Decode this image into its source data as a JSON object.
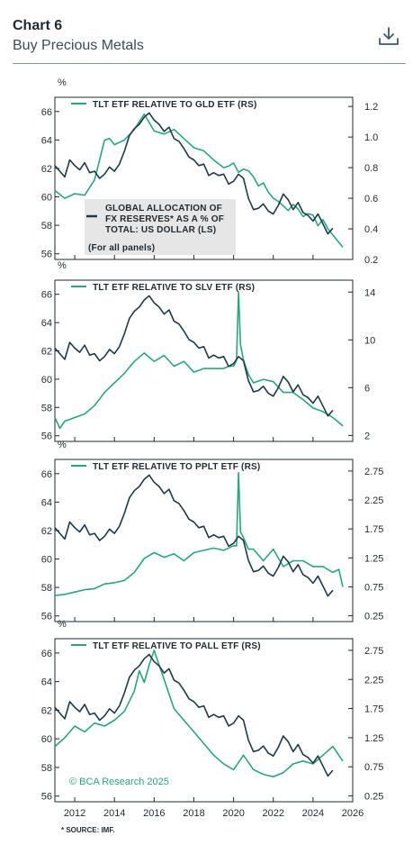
{
  "header": {
    "chart_number": "Chart 6",
    "subtitle": "Buy Precious Metals",
    "download_icon": "download-icon"
  },
  "colors": {
    "green": "#2aa67c",
    "dark": "#1e3a46",
    "legend_box": "#e6e6e6"
  },
  "source": "* SOURCE: IMF.",
  "watermark": "© BCA Research 2025",
  "shared_axes": {
    "left_unit": "%",
    "left_ticks": [
      "56",
      "58",
      "60",
      "62",
      "64",
      "66"
    ],
    "x_ticks": [
      "2012",
      "2014",
      "2016",
      "2018",
      "2020",
      "2022",
      "2024",
      "2026"
    ]
  },
  "dark_legend": {
    "lines": [
      "GLOBAL ALLOCATION OF",
      "FX RESERVES* AS A % OF",
      "TOTAL: US DOLLAR (LS)"
    ],
    "note": "(For all panels)"
  },
  "chart_data": [
    {
      "type": "line",
      "title": "TLT ETF RELATIVE TO GLD ETF (RS)",
      "x_range": [
        2011,
        2026
      ],
      "ylim_left": [
        55.6,
        67
      ],
      "ylim_right": [
        0.2,
        1.26
      ],
      "right_ticks": [
        "0.2",
        "0.4",
        "0.6",
        "0.8",
        "1.0",
        "1.2"
      ],
      "series": [
        {
          "name": "GLOBAL ALLOCATION OF FX RESERVES* AS A % OF TOTAL: US DOLLAR (LS)",
          "axis": "left",
          "x": [
            2011.0,
            2011.25,
            2011.5,
            2011.75,
            2012.0,
            2012.25,
            2012.5,
            2012.75,
            2013.0,
            2013.25,
            2013.5,
            2013.75,
            2014.0,
            2014.25,
            2014.5,
            2014.75,
            2015.0,
            2015.25,
            2015.5,
            2015.75,
            2016.0,
            2016.25,
            2016.5,
            2016.75,
            2017.0,
            2017.25,
            2017.5,
            2017.75,
            2018.0,
            2018.25,
            2018.5,
            2018.75,
            2019.0,
            2019.25,
            2019.5,
            2019.75,
            2020.0,
            2020.25,
            2020.5,
            2020.75,
            2021.0,
            2021.25,
            2021.5,
            2021.75,
            2022.0,
            2022.25,
            2022.5,
            2022.75,
            2023.0,
            2023.25,
            2023.5,
            2023.75,
            2024.0,
            2024.25,
            2024.5,
            2024.75,
            2025.0
          ],
          "y": [
            62.2,
            61.8,
            61.4,
            62.6,
            62.2,
            61.9,
            62.4,
            61.7,
            61.8,
            61.3,
            61.6,
            62.1,
            61.8,
            62.3,
            63.2,
            64.3,
            64.8,
            65.1,
            65.6,
            65.9,
            65.4,
            65.1,
            64.6,
            64.9,
            64.1,
            63.9,
            63.4,
            62.8,
            62.6,
            62.2,
            62.3,
            61.5,
            61.7,
            61.5,
            61.6,
            60.9,
            61.1,
            61.6,
            61.3,
            59.9,
            59.1,
            59.2,
            59.5,
            59.0,
            58.8,
            59.4,
            60.2,
            59.8,
            59.1,
            59.6,
            58.9,
            58.7,
            58.3,
            58.8,
            58.1,
            57.4,
            57.8
          ]
        },
        {
          "name": "TLT ETF RELATIVE TO GLD ETF (RS)",
          "axis": "right",
          "x": [
            2011.0,
            2011.5,
            2012.0,
            2012.5,
            2013.0,
            2013.25,
            2013.5,
            2013.75,
            2014.0,
            2014.5,
            2015.0,
            2015.5,
            2016.0,
            2016.5,
            2017.0,
            2017.5,
            2018.0,
            2018.5,
            2019.0,
            2019.5,
            2019.75,
            2020.0,
            2020.25,
            2020.5,
            2020.75,
            2021.0,
            2021.25,
            2021.5,
            2021.75,
            2022.0,
            2022.25,
            2022.5,
            2022.75,
            2023.0,
            2023.25,
            2023.5,
            2023.75,
            2024.0,
            2024.25,
            2024.5,
            2024.75,
            2025.0,
            2025.25,
            2025.5
          ],
          "y": [
            0.65,
            0.6,
            0.63,
            0.62,
            0.72,
            0.85,
            0.98,
            0.99,
            0.95,
            0.98,
            1.05,
            1.15,
            1.04,
            1.02,
            1.05,
            0.99,
            0.93,
            0.91,
            0.85,
            0.8,
            0.81,
            0.83,
            0.77,
            0.79,
            0.78,
            0.74,
            0.68,
            0.7,
            0.64,
            0.6,
            0.58,
            0.55,
            0.52,
            0.56,
            0.53,
            0.48,
            0.5,
            0.49,
            0.42,
            0.46,
            0.4,
            0.36,
            0.32,
            0.28
          ]
        }
      ]
    },
    {
      "type": "line",
      "title": "TLT ETF RELATIVE TO SLV ETF (RS)",
      "x_range": [
        2011,
        2026
      ],
      "ylim_left": [
        55.6,
        67
      ],
      "ylim_right": [
        1.5,
        15.0
      ],
      "right_ticks": [
        "2",
        "6",
        "10",
        "14"
      ],
      "series": [
        {
          "name": "GLOBAL ALLOCATION OF FX RESERVES* AS A % OF TOTAL: US DOLLAR (LS)",
          "axis": "left",
          "same_as": "panel-1"
        },
        {
          "name": "TLT ETF RELATIVE TO SLV ETF (RS)",
          "axis": "right",
          "x": [
            2011.0,
            2011.25,
            2011.5,
            2012.0,
            2012.5,
            2013.0,
            2013.5,
            2014.0,
            2014.5,
            2015.0,
            2015.5,
            2016.0,
            2016.5,
            2017.0,
            2017.5,
            2018.0,
            2018.5,
            2019.0,
            2019.5,
            2019.75,
            2020.0,
            2020.15,
            2020.25,
            2020.35,
            2020.5,
            2020.75,
            2021.0,
            2021.5,
            2022.0,
            2022.5,
            2023.0,
            2023.5,
            2024.0,
            2024.5,
            2025.0,
            2025.5
          ],
          "y": [
            3.5,
            2.6,
            3.2,
            3.5,
            3.8,
            4.5,
            5.6,
            6.4,
            7.2,
            8.2,
            8.9,
            8.2,
            8.7,
            7.8,
            8.2,
            7.3,
            7.6,
            7.6,
            7.6,
            7.8,
            7.8,
            8.3,
            14.0,
            9.6,
            8.3,
            7.1,
            6.4,
            6.7,
            6.5,
            5.6,
            5.6,
            5.0,
            4.3,
            4.0,
            3.5,
            2.8
          ]
        }
      ]
    },
    {
      "type": "line",
      "title": "TLT ETF RELATIVE TO PPLT ETF (RS)",
      "x_range": [
        2011,
        2026
      ],
      "ylim_left": [
        55.6,
        67
      ],
      "ylim_right": [
        0.15,
        2.95
      ],
      "right_ticks": [
        "0.25",
        "0.75",
        "1.25",
        "1.75",
        "2.25",
        "2.75"
      ],
      "series": [
        {
          "name": "GLOBAL ALLOCATION OF FX RESERVES* AS A % OF TOTAL: US DOLLAR (LS)",
          "axis": "left",
          "same_as": "panel-1"
        },
        {
          "name": "TLT ETF RELATIVE TO PPLT ETF (RS)",
          "axis": "right",
          "x": [
            2011.0,
            2011.5,
            2012.0,
            2012.5,
            2013.0,
            2013.5,
            2014.0,
            2014.5,
            2015.0,
            2015.5,
            2016.0,
            2016.5,
            2017.0,
            2017.5,
            2018.0,
            2018.5,
            2019.0,
            2019.5,
            2019.75,
            2020.0,
            2020.15,
            2020.25,
            2020.35,
            2020.5,
            2020.75,
            2021.0,
            2021.5,
            2022.0,
            2022.5,
            2023.0,
            2023.5,
            2024.0,
            2024.5,
            2025.0,
            2025.3,
            2025.5
          ],
          "y": [
            0.6,
            0.62,
            0.66,
            0.7,
            0.72,
            0.8,
            0.82,
            0.86,
            1.0,
            1.24,
            1.34,
            1.26,
            1.32,
            1.2,
            1.34,
            1.38,
            1.42,
            1.38,
            1.42,
            1.46,
            1.46,
            2.72,
            1.7,
            1.6,
            1.4,
            1.4,
            1.2,
            1.4,
            1.1,
            1.2,
            1.2,
            1.1,
            1.1,
            1.0,
            1.05,
            0.75
          ]
        }
      ]
    },
    {
      "type": "line",
      "title": "TLT ETF RELATIVE TO PALL ETF (RS)",
      "x_range": [
        2011,
        2026
      ],
      "ylim_left": [
        55.6,
        67
      ],
      "ylim_right": [
        0.15,
        2.95
      ],
      "right_ticks": [
        "0.25",
        "0.75",
        "1.25",
        "1.75",
        "2.25",
        "2.75"
      ],
      "series": [
        {
          "name": "GLOBAL ALLOCATION OF FX RESERVES* AS A % OF TOTAL: US DOLLAR (LS)",
          "axis": "left",
          "same_as": "panel-1"
        },
        {
          "name": "TLT ETF RELATIVE TO PALL ETF (RS)",
          "axis": "right",
          "x": [
            2011.0,
            2011.5,
            2012.0,
            2012.5,
            2013.0,
            2013.5,
            2014.0,
            2014.5,
            2015.0,
            2015.25,
            2015.5,
            2015.75,
            2016.0,
            2016.25,
            2016.5,
            2017.0,
            2017.5,
            2018.0,
            2018.5,
            2019.0,
            2019.5,
            2020.0,
            2020.5,
            2021.0,
            2021.5,
            2022.0,
            2022.5,
            2023.0,
            2023.5,
            2024.0,
            2024.5,
            2025.0,
            2025.5
          ],
          "y": [
            1.1,
            1.25,
            1.45,
            1.35,
            1.5,
            1.45,
            1.55,
            1.7,
            2.05,
            2.4,
            2.2,
            2.5,
            2.75,
            2.5,
            2.25,
            1.75,
            1.55,
            1.35,
            1.15,
            0.95,
            0.8,
            0.7,
            0.95,
            0.7,
            0.62,
            0.58,
            0.65,
            0.8,
            0.85,
            0.8,
            0.95,
            1.1,
            0.85
          ]
        }
      ]
    }
  ]
}
